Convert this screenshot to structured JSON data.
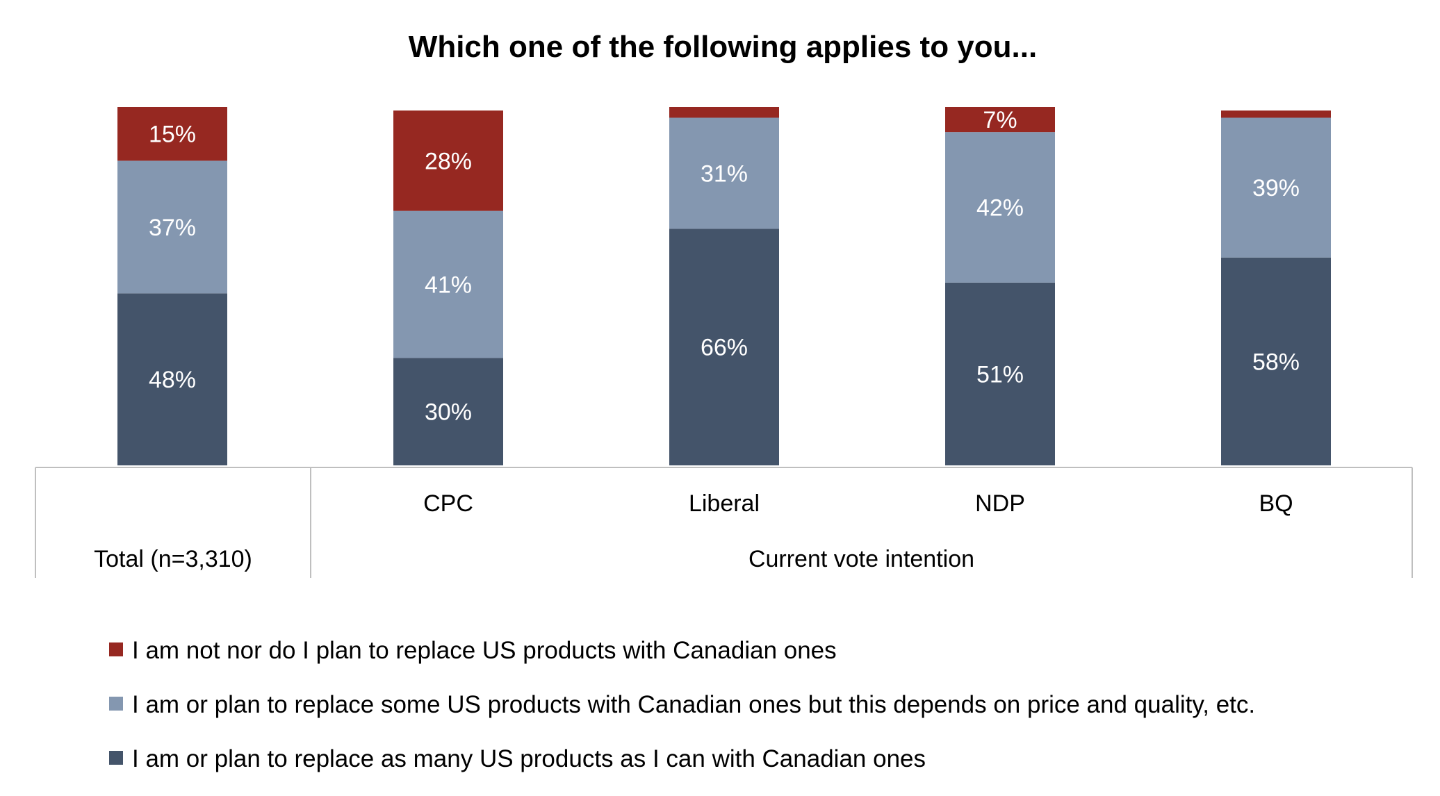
{
  "chart_data": {
    "type": "bar",
    "stacked": true,
    "title": "Which one of the following applies to you...",
    "categories": [
      "Total (n=3,310)",
      "CPC",
      "Liberal",
      "NDP",
      "BQ"
    ],
    "groups": [
      {
        "label": "Total (n=3,310)",
        "members": [
          "Total (n=3,310)"
        ]
      },
      {
        "label": "Current vote intention",
        "members": [
          "CPC",
          "Liberal",
          "NDP",
          "BQ"
        ]
      }
    ],
    "series": [
      {
        "name": "I am or plan to replace as many US products as I can with Canadian ones",
        "color": "#44546a",
        "values": [
          48,
          30,
          66,
          51,
          58
        ],
        "labels": [
          "48%",
          "30%",
          "66%",
          "51%",
          "58%"
        ]
      },
      {
        "name": "I am or plan to replace some US products with Canadian ones but this depends on price and quality, etc.",
        "color": "#8497b0",
        "values": [
          37,
          41,
          31,
          42,
          39
        ],
        "labels": [
          "37%",
          "41%",
          "31%",
          "42%",
          "39%"
        ]
      },
      {
        "name": "I am not nor do I plan to replace US products with Canadian ones",
        "color": "#962821",
        "values": [
          15,
          28,
          3,
          7,
          2
        ],
        "labels": [
          "15%",
          "28%",
          "",
          "7%",
          ""
        ]
      }
    ],
    "legend_order": [
      2,
      1,
      0
    ],
    "ylim": [
      0,
      100
    ],
    "grid": false,
    "legend_position": "bottom-left"
  }
}
